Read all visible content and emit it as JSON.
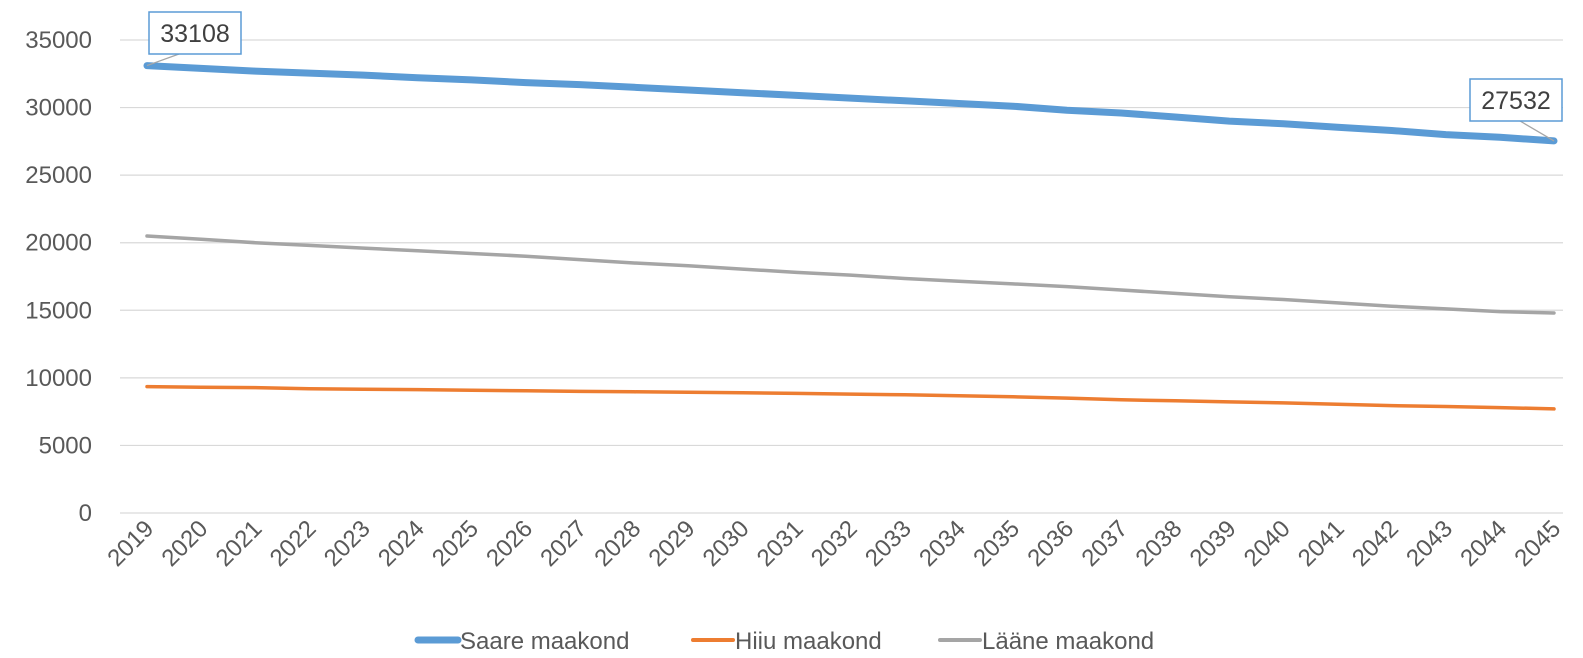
{
  "chart_data": {
    "type": "line",
    "title": "",
    "xlabel": "",
    "ylabel": "",
    "ylim": [
      0,
      35000
    ],
    "yticks": [
      0,
      5000,
      10000,
      15000,
      20000,
      25000,
      30000,
      35000
    ],
    "grid": "horizontal",
    "legend_position": "bottom",
    "categories": [
      "2019",
      "2020",
      "2021",
      "2022",
      "2023",
      "2024",
      "2025",
      "2026",
      "2027",
      "2028",
      "2029",
      "2030",
      "2031",
      "2032",
      "2033",
      "2034",
      "2035",
      "2036",
      "2037",
      "2038",
      "2039",
      "2040",
      "2041",
      "2042",
      "2043",
      "2044",
      "2045"
    ],
    "series": [
      {
        "name": "Saare maakond",
        "color": "#5B9BD5",
        "values": [
          33108,
          32900,
          32700,
          32550,
          32400,
          32200,
          32050,
          31850,
          31700,
          31500,
          31300,
          31100,
          30900,
          30700,
          30500,
          30300,
          30100,
          29800,
          29600,
          29300,
          29000,
          28800,
          28550,
          28300,
          28000,
          27800,
          27532
        ]
      },
      {
        "name": "Hiiu maakond",
        "color": "#ED7D31",
        "values": [
          9350,
          9300,
          9280,
          9200,
          9150,
          9130,
          9080,
          9050,
          9000,
          8970,
          8940,
          8900,
          8850,
          8800,
          8750,
          8680,
          8600,
          8500,
          8380,
          8300,
          8220,
          8150,
          8050,
          7950,
          7880,
          7800,
          7700
        ]
      },
      {
        "name": "Lääne maakond",
        "color": "#A5A5A5",
        "values": [
          20500,
          20250,
          20000,
          19800,
          19600,
          19400,
          19200,
          19000,
          18750,
          18500,
          18300,
          18050,
          17800,
          17600,
          17350,
          17150,
          16950,
          16750,
          16500,
          16250,
          16000,
          15800,
          15550,
          15300,
          15100,
          14900,
          14800
        ]
      }
    ],
    "annotations": [
      {
        "label": "33108",
        "series": 0,
        "category": "2019"
      },
      {
        "label": "27532",
        "series": 0,
        "category": "2045"
      }
    ]
  }
}
